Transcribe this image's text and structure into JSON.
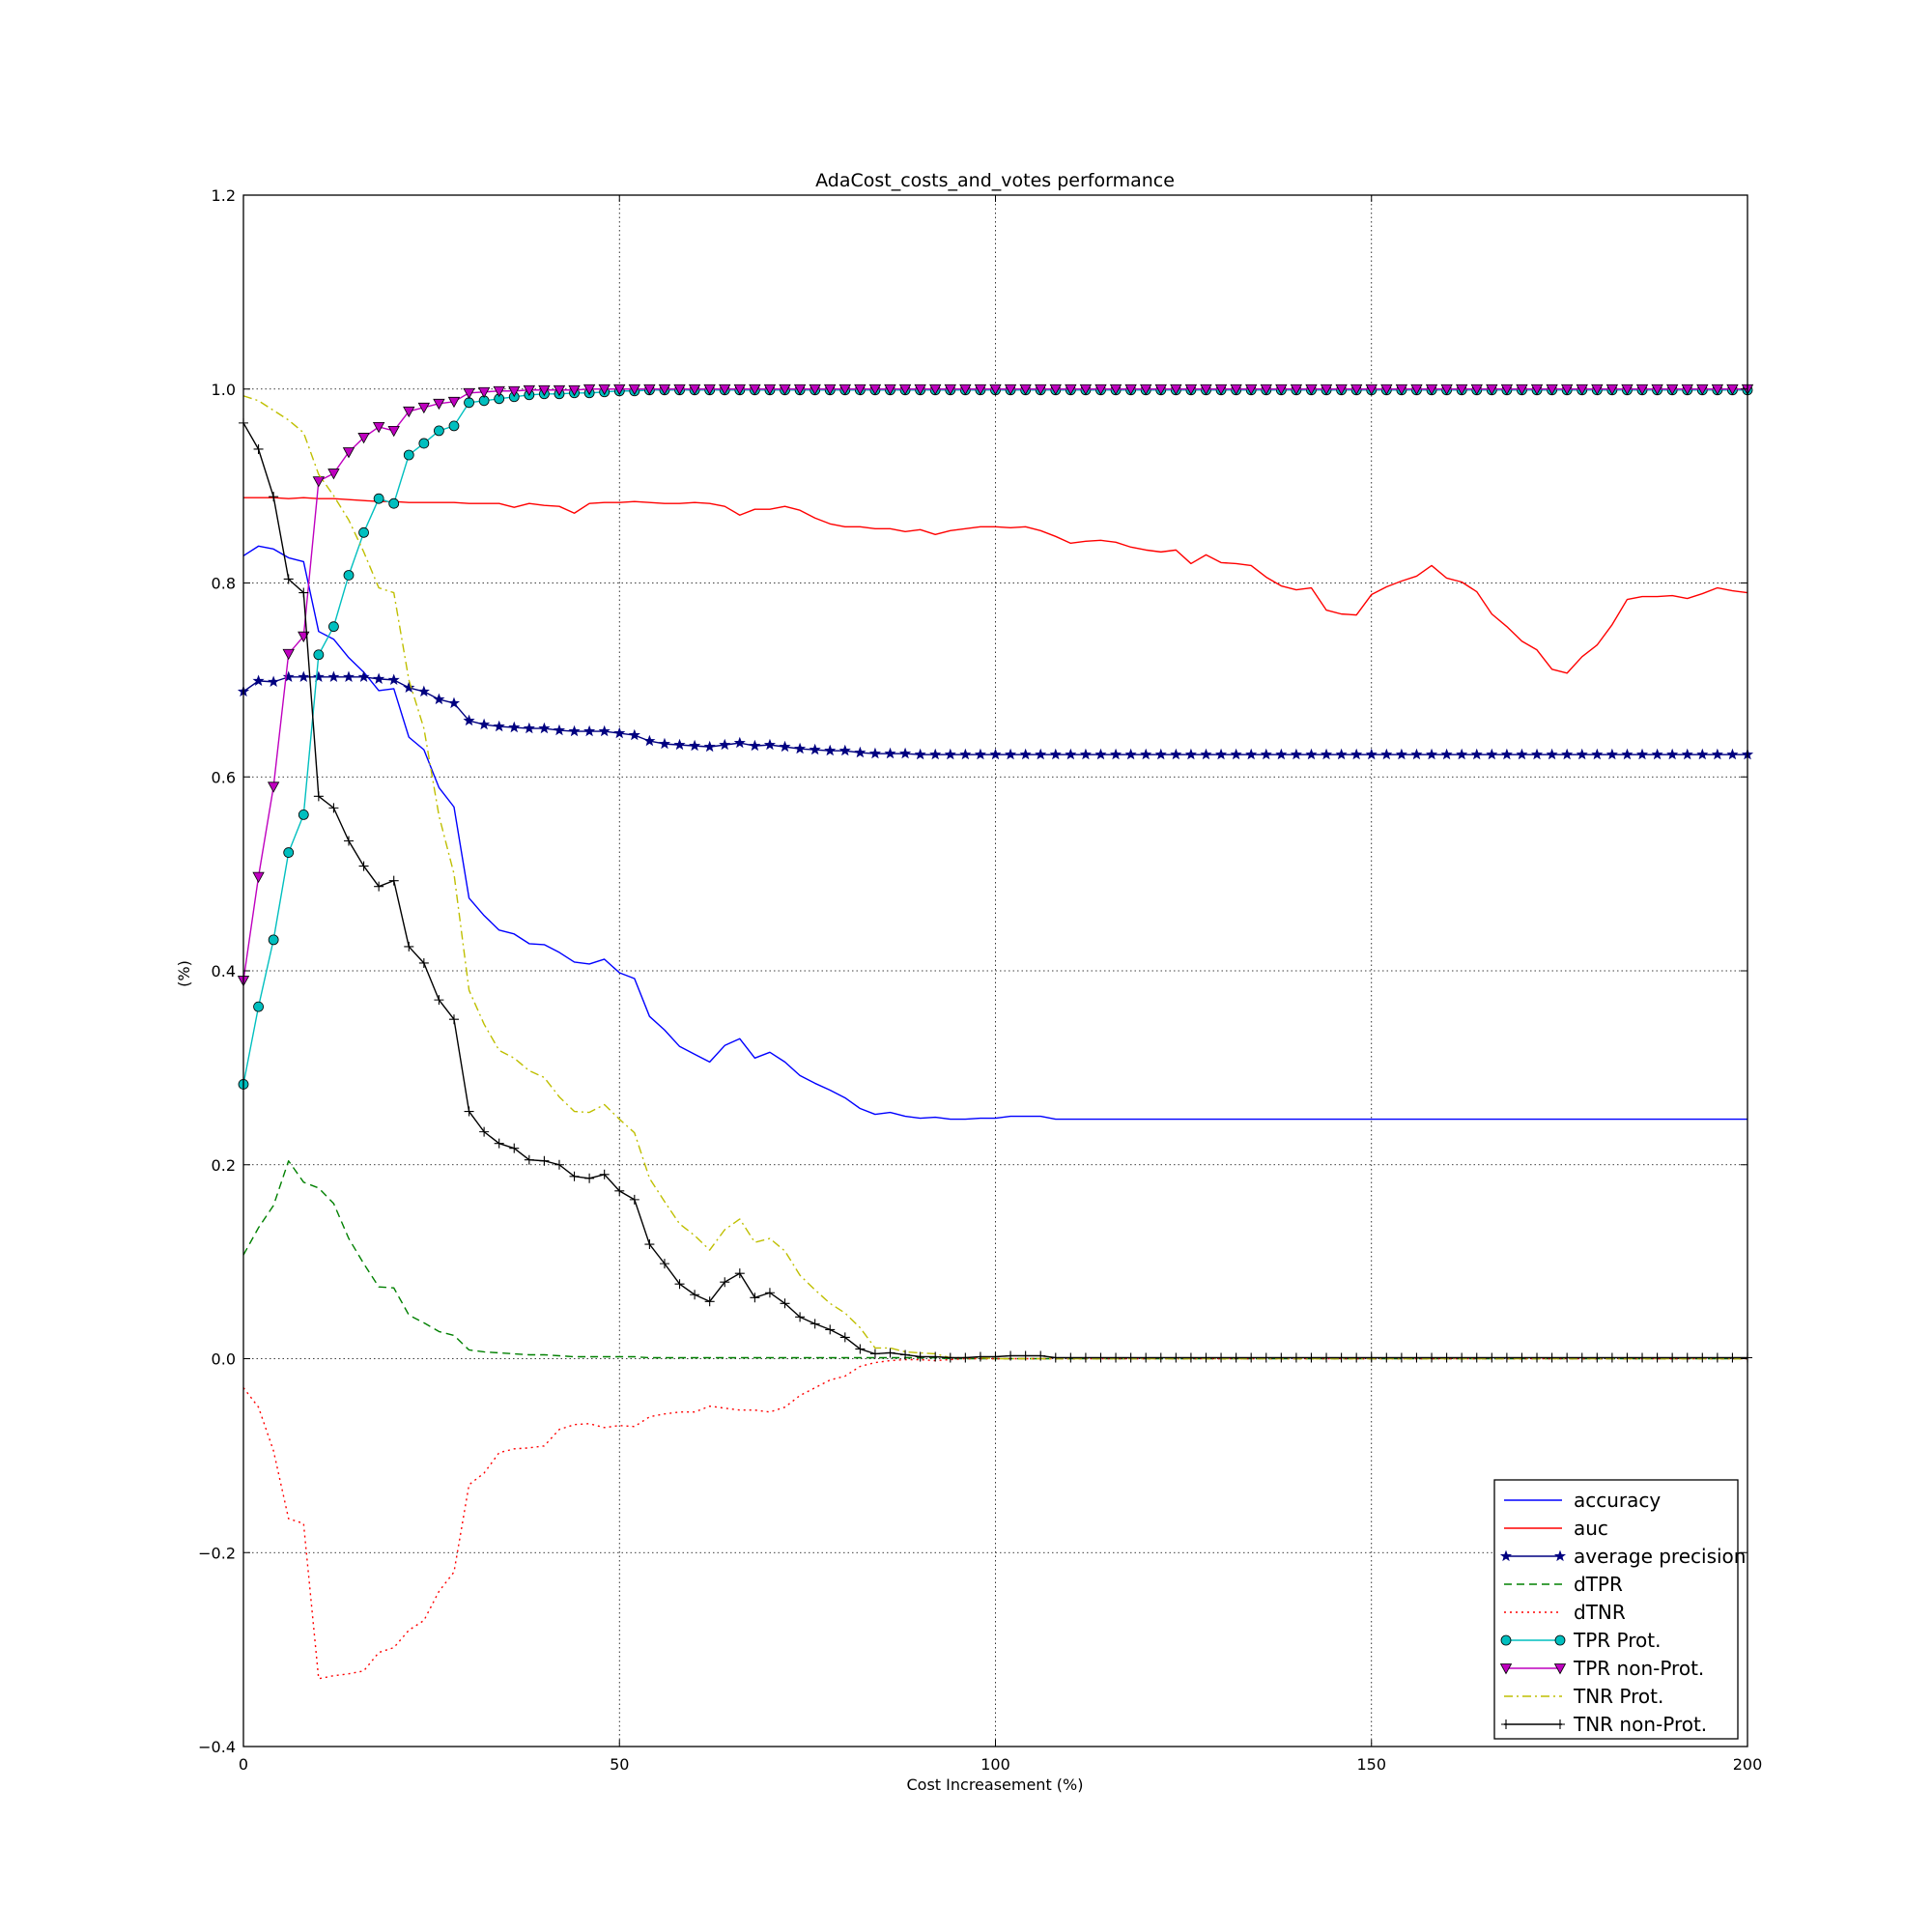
{
  "chart_data": {
    "type": "line",
    "title": "AdaCost_costs_and_votes performance",
    "xlabel": "Cost Increasement (%)",
    "ylabel": "(%)",
    "xlim": [
      0,
      200
    ],
    "ylim": [
      -0.4,
      1.2
    ],
    "xticks": [
      "0",
      "50",
      "100",
      "150",
      "200"
    ],
    "yticks": [
      "−0.4",
      "−0.2",
      "0.0",
      "0.2",
      "0.4",
      "0.6",
      "0.8",
      "1.0",
      "1.2"
    ],
    "grid": true,
    "legend_position": "lower-right",
    "x": [
      0,
      2,
      4,
      6,
      8,
      10,
      12,
      14,
      16,
      18,
      20,
      22,
      24,
      26,
      28,
      30,
      32,
      34,
      36,
      38,
      40,
      42,
      44,
      46,
      48,
      50,
      52,
      54,
      56,
      58,
      60,
      62,
      64,
      66,
      68,
      70,
      72,
      74,
      76,
      78,
      80,
      82,
      84,
      86,
      88,
      90,
      92,
      94,
      96,
      98,
      100,
      102,
      104,
      106,
      108,
      110,
      112,
      114,
      116,
      118,
      120,
      122,
      124,
      126,
      128,
      130,
      132,
      134,
      136,
      138,
      140,
      142,
      144,
      146,
      148,
      150,
      152,
      154,
      156,
      158,
      160,
      162,
      164,
      166,
      168,
      170,
      172,
      174,
      176,
      178,
      180,
      182,
      184,
      186,
      188,
      190,
      192,
      194,
      196,
      198,
      200
    ],
    "series": [
      {
        "name": "accuracy",
        "color": "#0000ff",
        "style": "solid",
        "marker": "none",
        "values": [
          0.828,
          0.838,
          0.835,
          0.826,
          0.822,
          0.75,
          0.742,
          0.723,
          0.708,
          0.689,
          0.691,
          0.641,
          0.628,
          0.589,
          0.569,
          0.475,
          0.457,
          0.442,
          0.438,
          0.428,
          0.427,
          0.419,
          0.409,
          0.407,
          0.412,
          0.398,
          0.392,
          0.353,
          0.339,
          0.322,
          0.314,
          0.306,
          0.323,
          0.33,
          0.31,
          0.316,
          0.306,
          0.292,
          0.284,
          0.277,
          0.269,
          0.258,
          0.252,
          0.254,
          0.25,
          0.248,
          0.249,
          0.247,
          0.247,
          0.248,
          0.248,
          0.25,
          0.25,
          0.25,
          0.247,
          0.247,
          0.247,
          0.247,
          0.247,
          0.247,
          0.247,
          0.247,
          0.247,
          0.247,
          0.247,
          0.247,
          0.247,
          0.247,
          0.247,
          0.247,
          0.247,
          0.247,
          0.247,
          0.247,
          0.247,
          0.247,
          0.247,
          0.247,
          0.247,
          0.247,
          0.247,
          0.247,
          0.247,
          0.247,
          0.247,
          0.247,
          0.247,
          0.247,
          0.247,
          0.247,
          0.247,
          0.247,
          0.247,
          0.247,
          0.247,
          0.247,
          0.247,
          0.247,
          0.247,
          0.247,
          0.247
        ]
      },
      {
        "name": "auc",
        "color": "#ff0000",
        "style": "solid",
        "marker": "none",
        "values": [
          0.888,
          0.888,
          0.888,
          0.887,
          0.888,
          0.887,
          0.887,
          0.886,
          0.885,
          0.884,
          0.884,
          0.883,
          0.883,
          0.883,
          0.883,
          0.882,
          0.882,
          0.882,
          0.878,
          0.882,
          0.88,
          0.879,
          0.872,
          0.882,
          0.883,
          0.883,
          0.884,
          0.883,
          0.882,
          0.882,
          0.883,
          0.882,
          0.879,
          0.87,
          0.876,
          0.876,
          0.879,
          0.875,
          0.867,
          0.861,
          0.858,
          0.858,
          0.856,
          0.856,
          0.853,
          0.855,
          0.85,
          0.854,
          0.856,
          0.858,
          0.858,
          0.857,
          0.858,
          0.854,
          0.848,
          0.841,
          0.843,
          0.844,
          0.842,
          0.837,
          0.834,
          0.832,
          0.834,
          0.82,
          0.829,
          0.821,
          0.82,
          0.818,
          0.806,
          0.797,
          0.793,
          0.795,
          0.772,
          0.768,
          0.767,
          0.788,
          0.796,
          0.802,
          0.807,
          0.818,
          0.805,
          0.801,
          0.791,
          0.768,
          0.755,
          0.74,
          0.731,
          0.711,
          0.707,
          0.724,
          0.736,
          0.757,
          0.783,
          0.786,
          0.786,
          0.787,
          0.784,
          0.789,
          0.795,
          0.792,
          0.79
        ]
      },
      {
        "name": "average precision",
        "color": "#000080",
        "style": "solid",
        "marker": "star",
        "values": [
          0.688,
          0.699,
          0.698,
          0.703,
          0.703,
          0.703,
          0.703,
          0.703,
          0.703,
          0.701,
          0.7,
          0.692,
          0.688,
          0.68,
          0.676,
          0.658,
          0.654,
          0.652,
          0.651,
          0.65,
          0.65,
          0.648,
          0.647,
          0.647,
          0.647,
          0.645,
          0.643,
          0.637,
          0.634,
          0.633,
          0.632,
          0.631,
          0.633,
          0.635,
          0.632,
          0.633,
          0.631,
          0.629,
          0.628,
          0.627,
          0.627,
          0.625,
          0.624,
          0.624,
          0.624,
          0.623,
          0.623,
          0.623,
          0.623,
          0.623,
          0.623,
          0.623,
          0.623,
          0.623,
          0.623,
          0.623,
          0.623,
          0.623,
          0.623,
          0.623,
          0.623,
          0.623,
          0.623,
          0.623,
          0.623,
          0.623,
          0.623,
          0.623,
          0.623,
          0.623,
          0.623,
          0.623,
          0.623,
          0.623,
          0.623,
          0.623,
          0.623,
          0.623,
          0.623,
          0.623,
          0.623,
          0.623,
          0.623,
          0.623,
          0.623,
          0.623,
          0.623,
          0.623,
          0.623,
          0.623,
          0.623,
          0.623,
          0.623,
          0.623,
          0.623,
          0.623,
          0.623,
          0.623,
          0.623,
          0.623,
          0.623
        ]
      },
      {
        "name": "dTPR",
        "color": "#008000",
        "style": "dashed",
        "marker": "none",
        "values": [
          0.107,
          0.135,
          0.158,
          0.204,
          0.182,
          0.176,
          0.16,
          0.124,
          0.098,
          0.074,
          0.073,
          0.045,
          0.037,
          0.028,
          0.024,
          0.009,
          0.007,
          0.006,
          0.005,
          0.004,
          0.004,
          0.003,
          0.002,
          0.002,
          0.002,
          0.002,
          0.002,
          0.001,
          0.001,
          0.001,
          0.001,
          0.001,
          0.001,
          0.001,
          0.001,
          0.001,
          0.001,
          0.001,
          0.001,
          0.001,
          0.001,
          0.001,
          0.001,
          0.001,
          0.001,
          0.001,
          0.001,
          0.0,
          0.0,
          0.0,
          0.0,
          0.0,
          0.0,
          0.0,
          0.0,
          0.0,
          0.0,
          0.0,
          0.0,
          0.0,
          0.0,
          0.0,
          0.0,
          0.0,
          0.0,
          0.0,
          0.0,
          0.0,
          0.0,
          0.0,
          0.0,
          0.0,
          0.0,
          0.0,
          0.0,
          0.0,
          0.0,
          0.0,
          0.0,
          0.0,
          0.0,
          0.0,
          0.0,
          0.0,
          0.0,
          0.0,
          0.0,
          0.0,
          0.0,
          0.0,
          0.0,
          0.0,
          0.0,
          0.0,
          0.0,
          0.0,
          0.0,
          0.0,
          0.0,
          0.0,
          0.0
        ]
      },
      {
        "name": "dTNR",
        "color": "#ff0000",
        "style": "dotted",
        "marker": "none",
        "values": [
          -0.03,
          -0.05,
          -0.095,
          -0.165,
          -0.17,
          -0.33,
          -0.327,
          -0.325,
          -0.322,
          -0.303,
          -0.298,
          -0.28,
          -0.27,
          -0.24,
          -0.22,
          -0.13,
          -0.118,
          -0.097,
          -0.093,
          -0.092,
          -0.09,
          -0.073,
          -0.068,
          -0.067,
          -0.071,
          -0.069,
          -0.07,
          -0.06,
          -0.057,
          -0.055,
          -0.055,
          -0.049,
          -0.051,
          -0.053,
          -0.053,
          -0.055,
          -0.05,
          -0.038,
          -0.03,
          -0.022,
          -0.018,
          -0.008,
          -0.004,
          -0.002,
          -0.001,
          -0.001,
          -0.002,
          -0.001,
          0.0,
          0.0,
          0.0,
          0.0,
          0.0,
          0.0,
          0.0,
          0.0,
          0.0,
          0.0,
          0.0,
          0.0,
          0.0,
          0.0,
          0.0,
          0.0,
          0.0,
          0.0,
          0.0,
          0.0,
          0.0,
          0.0,
          0.0,
          0.0,
          0.0,
          0.0,
          0.0,
          0.0,
          0.0,
          0.0,
          0.0,
          0.0,
          0.0,
          0.0,
          0.0,
          0.0,
          0.0,
          0.0,
          0.0,
          0.0,
          0.0,
          0.0,
          0.0,
          0.0,
          0.0,
          0.0,
          0.0,
          0.0,
          0.0,
          0.0,
          0.0,
          0.0,
          0.0
        ]
      },
      {
        "name": "TPR Prot.",
        "color": "#00bfbf",
        "style": "solid",
        "marker": "circle",
        "values": [
          0.283,
          0.363,
          0.432,
          0.522,
          0.561,
          0.726,
          0.755,
          0.808,
          0.852,
          0.887,
          0.882,
          0.932,
          0.944,
          0.957,
          0.962,
          0.986,
          0.988,
          0.99,
          0.992,
          0.994,
          0.995,
          0.995,
          0.996,
          0.996,
          0.997,
          0.998,
          0.998,
          0.999,
          0.999,
          0.999,
          0.999,
          0.999,
          0.999,
          0.999,
          0.999,
          0.999,
          0.999,
          0.999,
          0.999,
          0.999,
          0.999,
          0.999,
          0.999,
          0.999,
          0.999,
          0.999,
          0.999,
          0.999,
          0.999,
          0.999,
          0.999,
          0.999,
          0.999,
          0.999,
          0.999,
          0.999,
          0.999,
          0.999,
          0.999,
          0.999,
          0.999,
          0.999,
          0.999,
          0.999,
          0.999,
          0.999,
          0.999,
          0.999,
          0.999,
          0.999,
          0.999,
          0.999,
          0.999,
          0.999,
          0.999,
          0.999,
          0.999,
          0.999,
          0.999,
          0.999,
          0.999,
          0.999,
          0.999,
          0.999,
          0.999,
          0.999,
          0.999,
          0.999,
          0.999,
          0.999,
          0.999,
          0.999,
          0.999,
          0.999,
          0.999,
          0.999,
          0.999,
          0.999,
          0.999,
          0.999,
          0.999
        ]
      },
      {
        "name": "TPR non-Prot.",
        "color": "#bf00bf",
        "style": "solid",
        "marker": "triangle_down",
        "values": [
          0.39,
          0.497,
          0.59,
          0.727,
          0.745,
          0.905,
          0.913,
          0.935,
          0.95,
          0.961,
          0.957,
          0.977,
          0.981,
          0.985,
          0.987,
          0.996,
          0.997,
          0.998,
          0.998,
          0.999,
          0.999,
          0.999,
          0.999,
          1.0,
          1.0,
          1.0,
          1.0,
          1.0,
          1.0,
          1.0,
          1.0,
          1.0,
          1.0,
          1.0,
          1.0,
          1.0,
          1.0,
          1.0,
          1.0,
          1.0,
          1.0,
          1.0,
          1.0,
          1.0,
          1.0,
          1.0,
          1.0,
          1.0,
          1.0,
          1.0,
          1.0,
          1.0,
          1.0,
          1.0,
          1.0,
          1.0,
          1.0,
          1.0,
          1.0,
          1.0,
          1.0,
          1.0,
          1.0,
          1.0,
          1.0,
          1.0,
          1.0,
          1.0,
          1.0,
          1.0,
          1.0,
          1.0,
          1.0,
          1.0,
          1.0,
          1.0,
          1.0,
          1.0,
          1.0,
          1.0,
          1.0,
          1.0,
          1.0,
          1.0,
          1.0,
          1.0,
          1.0,
          1.0,
          1.0,
          1.0,
          1.0,
          1.0,
          1.0,
          1.0,
          1.0,
          1.0,
          1.0,
          1.0,
          1.0,
          1.0,
          1.0
        ]
      },
      {
        "name": "TNR Prot.",
        "color": "#bfbf00",
        "style": "dashdot",
        "marker": "none",
        "values": [
          0.993,
          0.988,
          0.978,
          0.968,
          0.955,
          0.912,
          0.89,
          0.865,
          0.832,
          0.795,
          0.79,
          0.7,
          0.65,
          0.56,
          0.5,
          0.38,
          0.345,
          0.318,
          0.31,
          0.297,
          0.29,
          0.27,
          0.255,
          0.254,
          0.262,
          0.247,
          0.233,
          0.186,
          0.162,
          0.139,
          0.127,
          0.112,
          0.133,
          0.144,
          0.12,
          0.124,
          0.111,
          0.086,
          0.071,
          0.057,
          0.047,
          0.032,
          0.011,
          0.011,
          0.007,
          0.006,
          0.005,
          0.001,
          0.001,
          0.001,
          0.0,
          0.0,
          0.0,
          0.0,
          0.0,
          0.0,
          0.0,
          0.0,
          0.0,
          0.0,
          0.0,
          0.0,
          0.0,
          0.0,
          0.0,
          0.0,
          0.0,
          0.0,
          0.0,
          0.0,
          0.0,
          0.0,
          0.0,
          0.0,
          0.0,
          0.0,
          0.0,
          0.0,
          0.0,
          0.0,
          0.0,
          0.0,
          0.0,
          0.0,
          0.0,
          0.0,
          0.0,
          0.0,
          0.0,
          0.0,
          0.0,
          0.0,
          0.0,
          0.0,
          0.0,
          0.0,
          0.0,
          0.0,
          0.0,
          0.0,
          0.0
        ]
      },
      {
        "name": "TNR non-Prot.",
        "color": "#000000",
        "style": "solid",
        "marker": "plus",
        "values": [
          0.965,
          0.938,
          0.889,
          0.804,
          0.79,
          0.58,
          0.568,
          0.534,
          0.508,
          0.487,
          0.493,
          0.425,
          0.408,
          0.37,
          0.35,
          0.255,
          0.234,
          0.222,
          0.217,
          0.205,
          0.204,
          0.2,
          0.188,
          0.186,
          0.19,
          0.173,
          0.164,
          0.118,
          0.098,
          0.077,
          0.066,
          0.059,
          0.079,
          0.088,
          0.063,
          0.068,
          0.057,
          0.043,
          0.036,
          0.03,
          0.022,
          0.01,
          0.005,
          0.006,
          0.004,
          0.002,
          0.002,
          0.001,
          0.001,
          0.002,
          0.002,
          0.003,
          0.003,
          0.003,
          0.001,
          0.001,
          0.001,
          0.001,
          0.001,
          0.001,
          0.001,
          0.001,
          0.001,
          0.001,
          0.001,
          0.001,
          0.001,
          0.001,
          0.001,
          0.001,
          0.001,
          0.001,
          0.001,
          0.001,
          0.001,
          0.001,
          0.001,
          0.001,
          0.001,
          0.001,
          0.001,
          0.001,
          0.001,
          0.001,
          0.001,
          0.001,
          0.001,
          0.001,
          0.001,
          0.001,
          0.001,
          0.001,
          0.001,
          0.001,
          0.001,
          0.001,
          0.001,
          0.001,
          0.001,
          0.001,
          0.001
        ]
      }
    ]
  }
}
